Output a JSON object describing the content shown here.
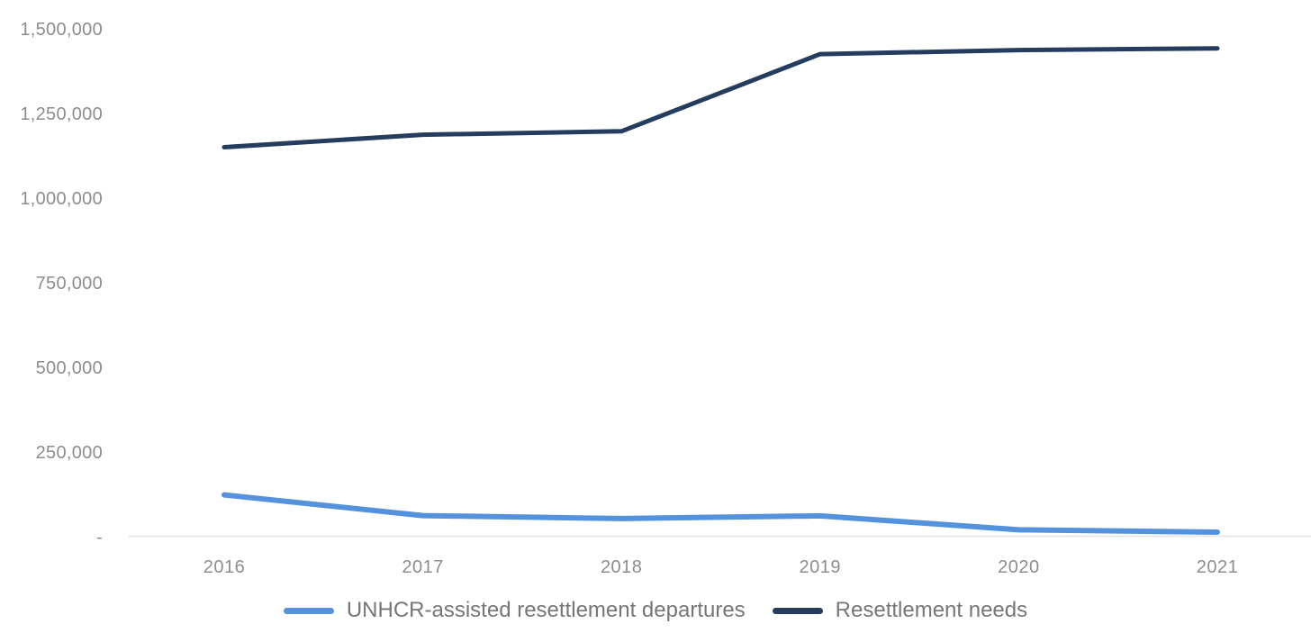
{
  "chart_data": {
    "type": "line",
    "title": "",
    "x_labels": [
      "2016",
      "2017",
      "2018",
      "2019",
      "2020",
      "2021"
    ],
    "series": [
      {
        "name": "UNHCR-assisted resettlement departures",
        "color": "#5592de",
        "values": [
          126000,
          65000,
          56000,
          64000,
          23000,
          16000
        ]
      },
      {
        "name": "Resettlement needs",
        "color": "#243d5f",
        "values": [
          1153000,
          1190000,
          1200000,
          1428000,
          1440000,
          1445000
        ]
      }
    ],
    "ylim": [
      0,
      1500000
    ],
    "ytick_values": [
      0,
      250000,
      500000,
      750000,
      1000000,
      1250000,
      1500000
    ],
    "ytick_labels": [
      "-",
      "250,000",
      "500,000",
      "750,000",
      "1,000,000",
      "1,250,000",
      "1,500,000"
    ],
    "grid": false,
    "legend_position": "bottom",
    "colors": {
      "axis_line": "#e7e7e7",
      "tick_label": "#8d8d8d",
      "legend_text": "#767676",
      "background": "#ffffff"
    }
  }
}
